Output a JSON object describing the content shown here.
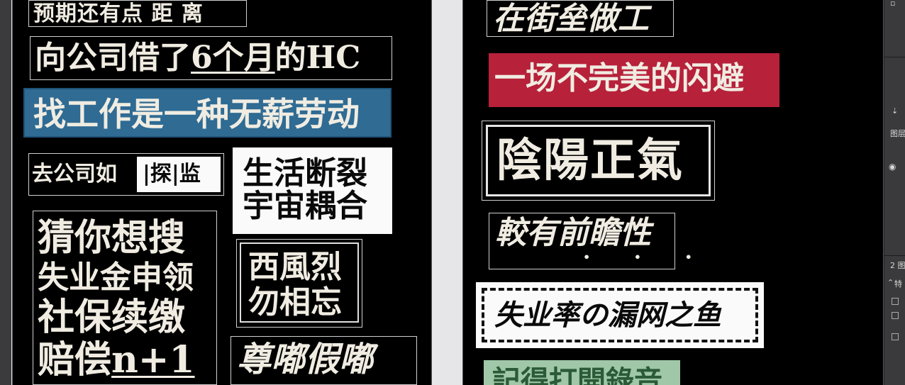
{
  "left_tags": {
    "expect": "预期还有点  距  离",
    "hc_prefix": "向公司借了",
    "hc_highlight": "6个月",
    "hc_suffix": "的HC",
    "job": "找工作是一种无薪劳动",
    "company_prefix": "去公司如",
    "company_box": "|探|监",
    "life_line1": "生活断裂",
    "life_line2": "宇宙耦合",
    "guess_line1": "猜你想搜",
    "guess_line2": "失业金申领",
    "guess_line3": "社保续缴",
    "guess_line4_a": "赔偿",
    "guess_line4_b": "n+1",
    "west_line1": "西風烈",
    "west_line2": "勿相忘",
    "zun": "尊嘟假嘟"
  },
  "right_tags": {
    "street": "在街垒做工",
    "dodge": "一场不完美的闪避",
    "yin": "陰陽正氣",
    "prospect": "較有前瞻性",
    "prospect_dots": "• • •",
    "unemploy": "失业率の漏网之鱼",
    "record": "記得打開錄音"
  },
  "panel": {
    "layers_label": "图层",
    "item2_label": "2 图",
    "props_label": "特"
  },
  "colors": {
    "blue_tag": "#2f6b93",
    "red_tag": "#b7213a",
    "green_tag": "#9fc7a8",
    "cream_text": "#f0ece2"
  }
}
